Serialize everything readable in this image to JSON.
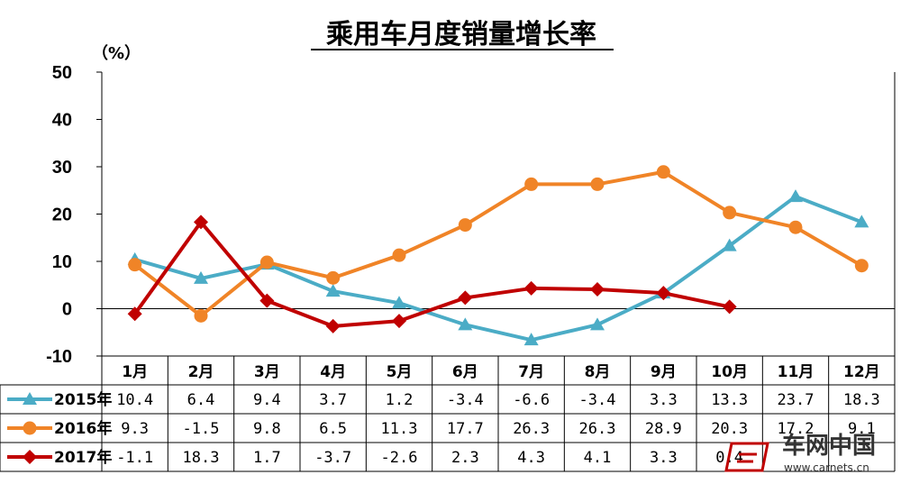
{
  "chart_data": {
    "type": "line",
    "title": "乘用车月度销量增长率",
    "unit_label": "（%）",
    "ylim": [
      -10,
      50
    ],
    "yticks": [
      "50",
      "40",
      "30",
      "20",
      "10",
      "0",
      "-10"
    ],
    "grid": false,
    "legend": "data-table-left",
    "categories": [
      "1月",
      "2月",
      "3月",
      "4月",
      "5月",
      "6月",
      "7月",
      "8月",
      "9月",
      "10月",
      "11月",
      "12月"
    ],
    "series": [
      {
        "name": "2015年",
        "color": "#4bacc6",
        "marker": "triangle",
        "values": [
          10.4,
          6.4,
          9.4,
          3.7,
          1.2,
          -3.4,
          -6.6,
          -3.4,
          3.3,
          13.3,
          23.7,
          18.3
        ],
        "labels": [
          "10.4",
          "6.4",
          "9.4",
          "3.7",
          "1.2",
          "-3.4",
          "-6.6",
          "-3.4",
          "3.3",
          "13.3",
          "23.7",
          "18.3"
        ]
      },
      {
        "name": "2016年",
        "color": "#f08427",
        "marker": "circle",
        "values": [
          9.3,
          -1.5,
          9.8,
          6.5,
          11.3,
          17.7,
          26.3,
          26.3,
          28.9,
          20.3,
          17.2,
          9.1
        ],
        "labels": [
          "9.3",
          "-1.5",
          "9.8",
          "6.5",
          "11.3",
          "17.7",
          "26.3",
          "26.3",
          "28.9",
          "20.3",
          "17.2",
          "9.1"
        ]
      },
      {
        "name": "2017年",
        "color": "#c00000",
        "marker": "diamond",
        "values": [
          -1.1,
          18.3,
          1.7,
          -3.7,
          -2.6,
          2.3,
          4.3,
          4.1,
          3.3,
          0.4,
          null,
          null
        ],
        "labels": [
          "-1.1",
          "18.3",
          "1.7",
          "-3.7",
          "-2.6",
          "2.3",
          "4.3",
          "4.1",
          "3.3",
          "0.4",
          "",
          ""
        ]
      }
    ]
  },
  "watermark": {
    "brand": "车网中国",
    "url": "www.carnets.cn"
  }
}
